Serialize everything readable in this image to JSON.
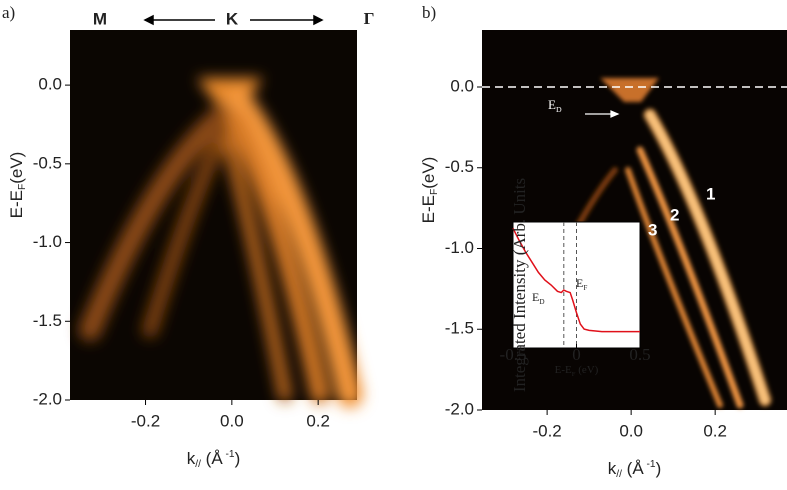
{
  "chart_data": [
    {
      "type": "image",
      "panel_label": "a)",
      "annotations": [
        "M",
        "K",
        "Γ"
      ],
      "xlabel": {
        "main": "k",
        "sub": "//",
        "unit": " (Å",
        "sup": " -1",
        "close": ")"
      },
      "ylabel": {
        "main": "E-E",
        "sub": "F",
        "unit": "(eV)"
      },
      "xlim": [
        -0.375,
        0.29
      ],
      "ylim": [
        -2.0,
        0.35
      ],
      "xticks": [
        {
          "value": -0.2,
          "label": "-0.2"
        },
        {
          "value": 0,
          "label": "0.0"
        },
        {
          "value": 0.2,
          "label": "0.2"
        }
      ],
      "yticks": [
        {
          "value": 0,
          "label": "0.0"
        },
        {
          "value": -0.5,
          "label": "-0.5"
        },
        {
          "value": -1,
          "label": "-1.0"
        },
        {
          "value": -1.5,
          "label": "-1.5"
        },
        {
          "value": -2,
          "label": "-2.0"
        }
      ]
    },
    {
      "type": "image",
      "panel_label": "b)",
      "annotations": [
        {
          "main": "E",
          "sub": "D"
        },
        "1",
        "2",
        "3"
      ],
      "fermi_level": 0,
      "xlabel": {
        "main": "k",
        "sub": "//",
        "unit": " (Å",
        "sup": " -1",
        "close": ")"
      },
      "ylabel": {
        "main": "E-E",
        "sub": "F",
        "unit": "(eV)"
      },
      "xlim": [
        -0.355,
        0.371
      ],
      "ylim": [
        -2.0,
        0.353
      ],
      "xticks": [
        {
          "value": -0.2,
          "label": "-0.2"
        },
        {
          "value": 0,
          "label": "0.0"
        },
        {
          "value": 0.2,
          "label": "0.2"
        }
      ],
      "yticks": [
        {
          "value": 0,
          "label": "0.0"
        },
        {
          "value": -0.5,
          "label": "-0.5"
        },
        {
          "value": -1,
          "label": "-1.0"
        },
        {
          "value": -1.5,
          "label": "-1.5"
        },
        {
          "value": -2,
          "label": "-2.0"
        }
      ]
    },
    {
      "type": "line",
      "inset": true,
      "ylabel": "Integrated Intensity (Arb. Units",
      "xlabel": {
        "main": "E-E",
        "sub": "F",
        "unit": " (eV)"
      },
      "annotations": [
        {
          "main": "E",
          "sub": "D"
        },
        {
          "main": "E",
          "sub": "F"
        }
      ],
      "markers": [
        -0.1,
        0
      ],
      "xlim": [
        -0.5,
        0.5
      ],
      "ylim": [
        0,
        1
      ],
      "xticks": [
        -0.5,
        0,
        0.5
      ],
      "series": [
        {
          "color": "#e0101a",
          "x": [
            -0.5,
            -0.45,
            -0.4,
            -0.35,
            -0.3,
            -0.25,
            -0.2,
            -0.15,
            -0.12,
            -0.1,
            -0.08,
            -0.05,
            -0.03,
            0,
            0.03,
            0.06,
            0.1,
            0.2,
            0.3,
            0.4,
            0.5
          ],
          "values": [
            0.95,
            0.85,
            0.76,
            0.68,
            0.6,
            0.54,
            0.5,
            0.45,
            0.44,
            0.46,
            0.45,
            0.44,
            0.38,
            0.28,
            0.19,
            0.15,
            0.14,
            0.13,
            0.13,
            0.13,
            0.13
          ]
        }
      ]
    }
  ]
}
